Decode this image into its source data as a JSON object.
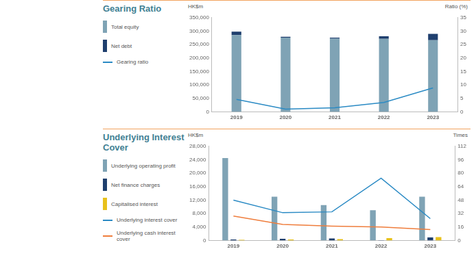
{
  "chart_data": [
    {
      "type": "bar",
      "title": "Gearing Ratio",
      "y_label": "HK$m",
      "y2_label": "Ratio (%)",
      "categories": [
        "2019",
        "2020",
        "2021",
        "2022",
        "2023"
      ],
      "stacked": true,
      "grid": false,
      "marker": "none",
      "series": [
        {
          "name": "Total equity",
          "type": "bar",
          "color": "#7fa3b5",
          "values": [
            285000,
            276000,
            272000,
            271000,
            266000
          ]
        },
        {
          "name": "Net debt",
          "type": "bar",
          "color": "#1f3f6e",
          "values": [
            13000,
            3000,
            4000,
            9500,
            24000
          ]
        },
        {
          "name": "Gearing ratio",
          "type": "line",
          "axis": "y2",
          "color": "#2a8ac4",
          "values": [
            4.6,
            1.0,
            1.5,
            3.5,
            8.9
          ]
        }
      ],
      "ylim": [
        0,
        350000
      ],
      "yticks": [
        0,
        {
          "value": 50000,
          "label": "50,000"
        },
        {
          "value": 100000,
          "label": "100,000"
        },
        {
          "value": 150000,
          "label": "150,000"
        },
        {
          "value": 200000,
          "label": "200,000"
        },
        {
          "value": 250000,
          "label": "250,000"
        },
        {
          "value": 300000,
          "label": "300,000"
        },
        {
          "value": 350000,
          "label": "350,000"
        }
      ],
      "y2lim": [
        0,
        35
      ],
      "y2ticks": [
        0,
        5,
        10,
        15,
        20,
        25,
        30,
        35
      ]
    },
    {
      "type": "bar",
      "title": "Underlying Interest Cover",
      "y_label": "HK$m",
      "y2_label": "Times",
      "categories": [
        "2019",
        "2020",
        "2021",
        "2022",
        "2023"
      ],
      "stacked": false,
      "grid": false,
      "marker": "none",
      "series": [
        {
          "name": "Underlying operating profit",
          "type": "bar",
          "color": "#7fa3b5",
          "values": [
            24500,
            13000,
            10500,
            9000,
            13000
          ]
        },
        {
          "name": "Net finance charges",
          "type": "bar",
          "color": "#1f3f6e",
          "values": [
            300,
            500,
            600,
            100,
            900
          ]
        },
        {
          "name": "Capitalised interest",
          "type": "bar",
          "color": "#e8c11c",
          "values": [
            200,
            300,
            400,
            700,
            1000
          ]
        },
        {
          "name": "Underlying interest cover",
          "type": "line",
          "axis": "y2",
          "color": "#2a8ac4",
          "values": [
            48,
            33,
            34,
            74,
            26
          ]
        },
        {
          "name": "Underlying cash interest cover",
          "type": "line",
          "axis": "y2",
          "color": "#ef7d3c",
          "values": [
            29,
            19,
            17,
            16,
            13
          ]
        }
      ],
      "ylim": [
        0,
        28000
      ],
      "yticks": [
        0,
        {
          "value": 4000,
          "label": "4,000"
        },
        {
          "value": 8000,
          "label": "8,000"
        },
        {
          "value": 12000,
          "label": "12,000"
        },
        {
          "value": 16000,
          "label": "16,000"
        },
        {
          "value": 20000,
          "label": "20,000"
        },
        {
          "value": 24000,
          "label": "24,000"
        },
        {
          "value": 28000,
          "label": "28,000"
        }
      ],
      "y2lim": [
        0,
        112
      ],
      "y2ticks": [
        0,
        16,
        32,
        48,
        64,
        80,
        96,
        112
      ]
    }
  ]
}
